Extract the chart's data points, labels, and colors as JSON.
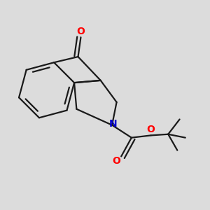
{
  "background_color": "#dcdcdc",
  "line_color": "#1a1a1a",
  "bond_width": 1.6,
  "atom_colors": {
    "O": "#ff0000",
    "N": "#0000cc",
    "C": "#1a1a1a"
  },
  "figsize": [
    3.0,
    3.0
  ],
  "dpi": 100
}
